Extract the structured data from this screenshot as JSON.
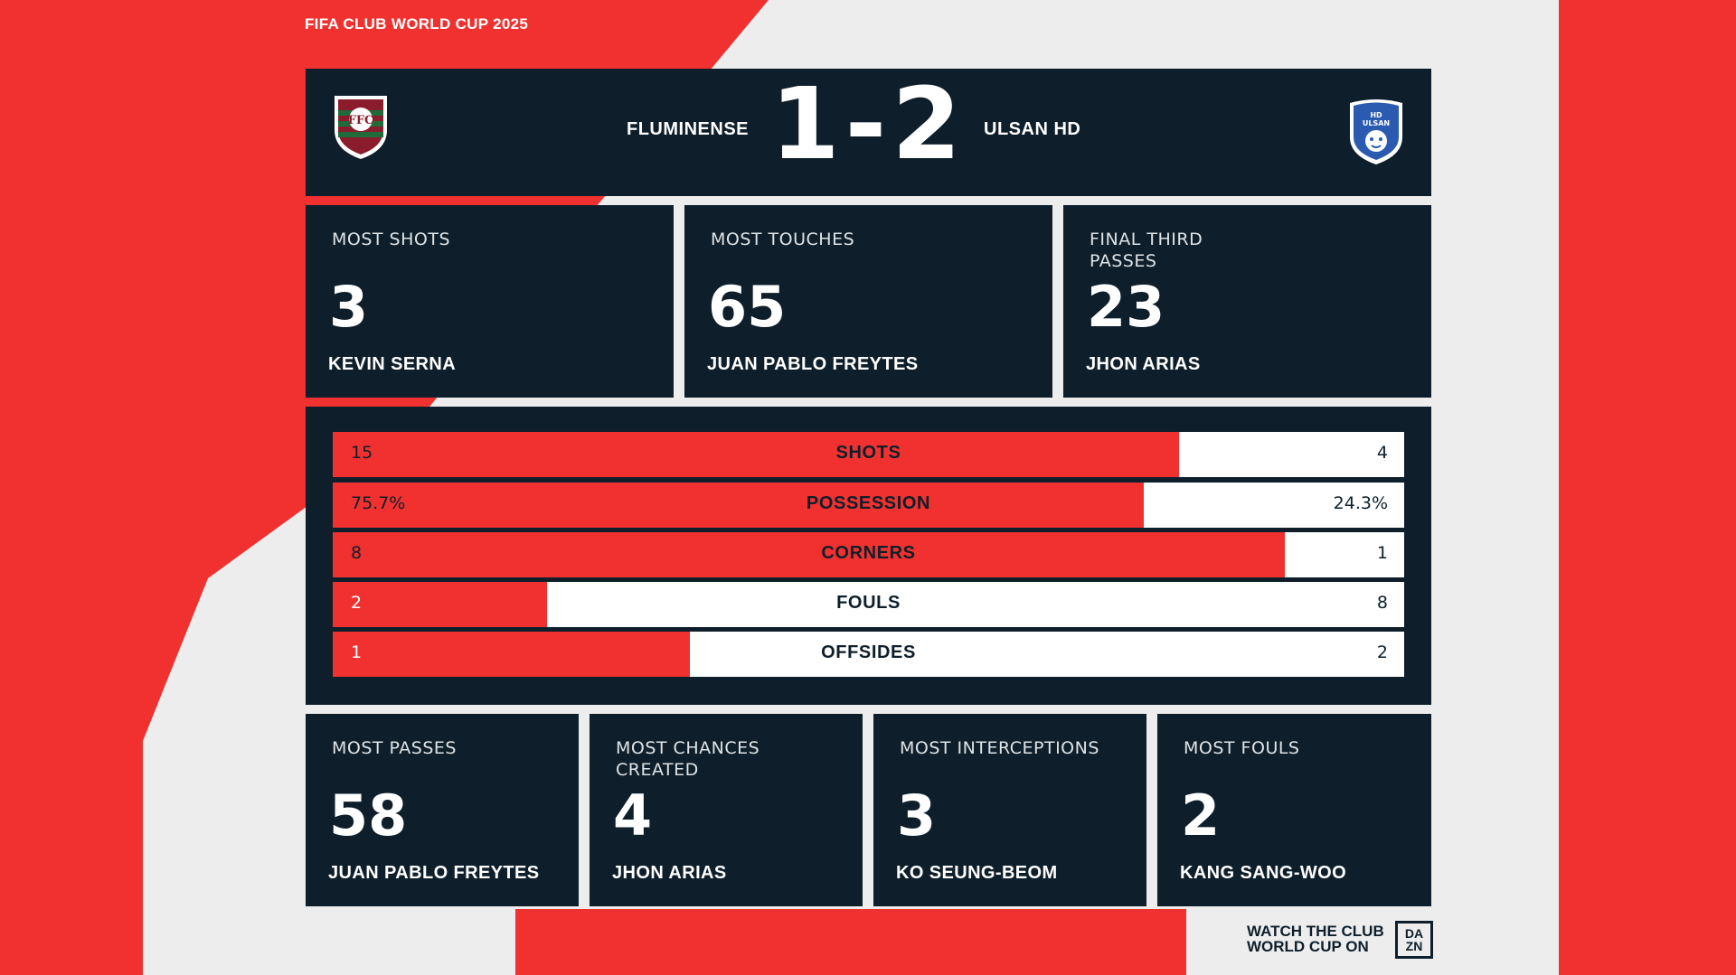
{
  "competition": "FIFA CLUB WORLD CUP 2025",
  "match": {
    "home_team": "FLUMINENSE",
    "away_team": "ULSAN HD",
    "score": "1-2",
    "home_crest_text": "FFC",
    "away_crest_text": "HD ULSAN"
  },
  "top_stats": [
    {
      "label": "MOST SHOTS",
      "value": "3",
      "player": "KEVIN SERNA"
    },
    {
      "label": "MOST TOUCHES",
      "value": "65",
      "player": "JUAN PABLO FREYTES"
    },
    {
      "label": "FINAL THIRD PASSES",
      "value": "23",
      "player": "JHON ARIAS"
    }
  ],
  "comparison": [
    {
      "name": "SHOTS",
      "home": "15",
      "away": "4",
      "home_share": 0.79
    },
    {
      "name": "POSSESSION",
      "home": "75.7%",
      "away": "24.3%",
      "home_share": 0.757
    },
    {
      "name": "CORNERS",
      "home": "8",
      "away": "1",
      "home_share": 0.889
    },
    {
      "name": "FOULS",
      "home": "2",
      "away": "8",
      "home_share": 0.2
    },
    {
      "name": "OFFSIDES",
      "home": "1",
      "away": "2",
      "home_share": 0.333
    }
  ],
  "bottom_stats": [
    {
      "label": "MOST PASSES",
      "value": "58",
      "player": "JUAN PABLO FREYTES"
    },
    {
      "label": "MOST CHANCES CREATED",
      "value": "4",
      "player": "JHON ARIAS"
    },
    {
      "label": "MOST INTERCEPTIONS",
      "value": "3",
      "player": "KO SEUNG-BEOM"
    },
    {
      "label": "MOST FOULS",
      "value": "2",
      "player": "KANG SANG-WOO"
    }
  ],
  "footer": {
    "watch_text": "WATCH THE CLUB WORLD CUP ON",
    "logo_top": "DA",
    "logo_bottom": "ZN"
  },
  "colors": {
    "accent": "#f0312f",
    "panel": "#0e1f2b",
    "light": "#ededed",
    "white": "#ffffff"
  }
}
